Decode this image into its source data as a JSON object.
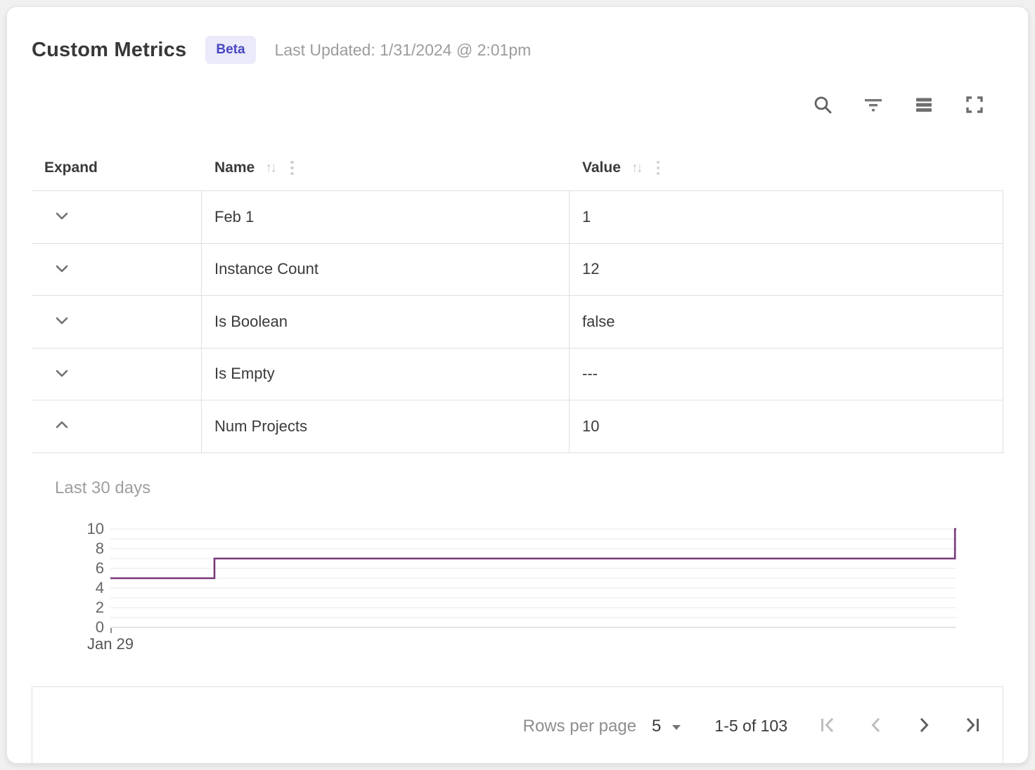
{
  "header": {
    "title": "Custom Metrics",
    "badge": {
      "label": "Beta",
      "bg": "#eaeafa",
      "color": "#4747c3"
    },
    "last_updated": "Last Updated: 1/31/2024 @ 2:01pm"
  },
  "toolbar": {
    "icons": [
      "search",
      "filter",
      "density",
      "fullscreen"
    ],
    "icon_color": "#616161"
  },
  "table": {
    "columns": [
      {
        "field": "expand",
        "label": "Expand",
        "sortable": false
      },
      {
        "field": "name",
        "label": "Name",
        "sortable": true
      },
      {
        "field": "value",
        "label": "Value",
        "sortable": true
      }
    ],
    "rows": [
      {
        "name": "Feb 1",
        "value": "1",
        "expanded": false
      },
      {
        "name": "Instance Count",
        "value": "12",
        "expanded": false
      },
      {
        "name": "Is Boolean",
        "value": "false",
        "expanded": false
      },
      {
        "name": "Is Empty",
        "value": "---",
        "expanded": false
      },
      {
        "name": "Num Projects",
        "value": "10",
        "expanded": true
      }
    ]
  },
  "chart_data": {
    "type": "line",
    "subtype": "step",
    "title": "Last 30 days",
    "x_start_label": "Jan 29",
    "ylim": [
      0,
      10
    ],
    "y_ticks": [
      0,
      2,
      4,
      6,
      8,
      10
    ],
    "gridline_every": 1,
    "grid_on": true,
    "line_color": "#77397b",
    "gridline_color": "#efefef",
    "baseline_color": "#dcdcdc",
    "steps": [
      {
        "x_from": 0.0,
        "x_to": 0.123,
        "value": 5
      },
      {
        "x_from": 0.123,
        "x_to": 0.9985,
        "value": 7
      },
      {
        "x_from": 0.9985,
        "x_to": 1.0,
        "value": 10
      }
    ]
  },
  "pagination": {
    "rows_per_page_label": "Rows per page",
    "rows_per_page_value": "5",
    "range_text": "1-5 of 103",
    "buttons": [
      {
        "name": "first-page",
        "enabled": false
      },
      {
        "name": "previous-page",
        "enabled": false
      },
      {
        "name": "next-page",
        "enabled": true
      },
      {
        "name": "last-page",
        "enabled": true
      }
    ],
    "enabled_color": "#5f5f5f",
    "disabled_color": "#bdbdbd"
  }
}
